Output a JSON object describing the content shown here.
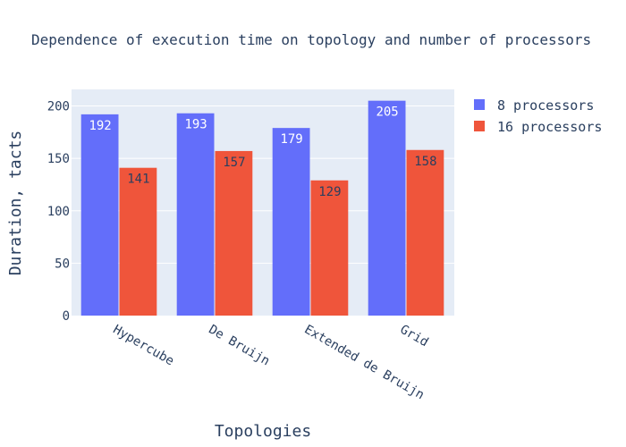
{
  "chart_data": {
    "type": "bar",
    "title": "Dependence of execution time on topology and number of processors",
    "xlabel": "Topologies",
    "ylabel": "Duration, tacts",
    "categories": [
      "Hypercube",
      "De Bruijn",
      "Extended de Bruijn",
      "Grid"
    ],
    "series": [
      {
        "name": "8 processors",
        "values": [
          192,
          193,
          179,
          205
        ],
        "color": "#636efa",
        "label_color": "#ffffff"
      },
      {
        "name": "16 processors",
        "values": [
          141,
          157,
          129,
          158
        ],
        "color": "#ef553b",
        "label_color": "#2a3f5f"
      }
    ],
    "ylim": [
      0,
      215.8
    ],
    "yticks": [
      0,
      50,
      100,
      150,
      200
    ],
    "grid": true,
    "legend_position": "top-right",
    "plot_background": "#e5ecf6"
  }
}
